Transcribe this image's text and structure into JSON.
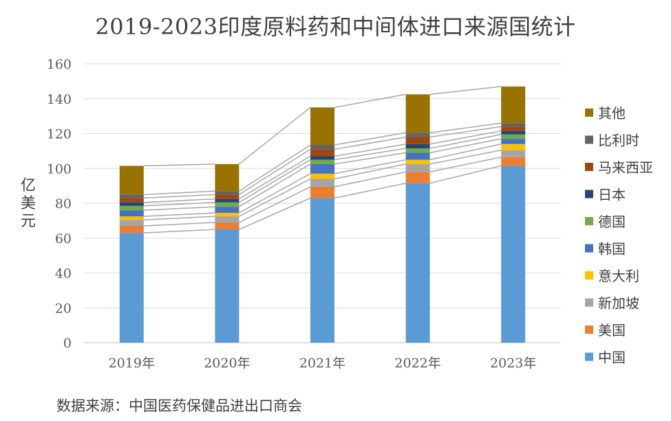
{
  "chart_data": {
    "type": "bar",
    "stacked": true,
    "title": "2019-2023印度原料药和中间体进口来源国统计",
    "ylabel": "亿美元",
    "source": "数据来源：中国医药保健品进出口商会",
    "categories": [
      "2019年",
      "2020年",
      "2021年",
      "2022年",
      "2023年"
    ],
    "yticks": [
      "0",
      "20",
      "40",
      "60",
      "80",
      "100",
      "120",
      "140",
      "160"
    ],
    "ylim": [
      0,
      160
    ],
    "grid": true,
    "legend_position": "right",
    "series_lines": true,
    "series": [
      {
        "name": "中国",
        "color": "#5B9BD5",
        "values": [
          63,
          65,
          83,
          91.5,
          101.5
        ]
      },
      {
        "name": "美国",
        "color": "#ED7D31",
        "values": [
          4,
          4,
          6.5,
          6.5,
          5
        ]
      },
      {
        "name": "新加坡",
        "color": "#A5A5A5",
        "values": [
          3.5,
          3.5,
          4.5,
          4.5,
          4
        ]
      },
      {
        "name": "意大利",
        "color": "#FFC000",
        "values": [
          2,
          2,
          3,
          2.5,
          3.5
        ]
      },
      {
        "name": "韩国",
        "color": "#4472C4",
        "values": [
          3.5,
          3.5,
          5.5,
          4,
          3
        ]
      },
      {
        "name": "德国",
        "color": "#70AD47",
        "values": [
          2.5,
          2.5,
          2.5,
          2.5,
          2.5
        ]
      },
      {
        "name": "日本",
        "color": "#264478",
        "values": [
          2,
          2,
          2,
          2.5,
          2
        ]
      },
      {
        "name": "马来西亚",
        "color": "#9E480E",
        "values": [
          2.5,
          2.5,
          4,
          4,
          2.5
        ]
      },
      {
        "name": "比利时",
        "color": "#636363",
        "values": [
          2,
          2,
          2.5,
          2.5,
          2
        ]
      },
      {
        "name": "其他",
        "color": "#997300",
        "values": [
          16.5,
          15.5,
          21.5,
          22,
          21
        ]
      }
    ]
  }
}
